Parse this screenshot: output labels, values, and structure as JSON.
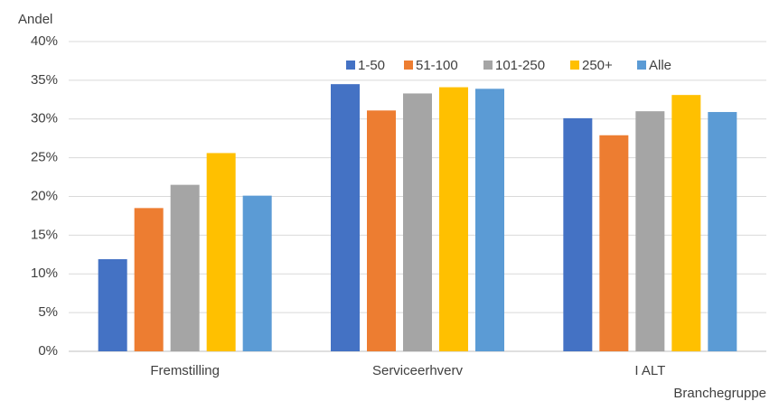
{
  "chart_data": {
    "type": "bar",
    "y_label": "Andel",
    "x_label": "Branchegruppe",
    "categories": [
      "Fremstilling",
      "Serviceerhverv",
      "I ALT"
    ],
    "series": [
      {
        "name": "1-50",
        "color": "#4472c4",
        "values": [
          11.9,
          34.5,
          30.1
        ]
      },
      {
        "name": "51-100",
        "color": "#ed7d31",
        "values": [
          18.5,
          31.1,
          27.9
        ]
      },
      {
        "name": "101-250",
        "color": "#a5a5a5",
        "values": [
          21.5,
          33.3,
          31.0
        ]
      },
      {
        "name": "250+",
        "color": "#ffc000",
        "values": [
          25.6,
          34.1,
          33.1
        ]
      },
      {
        "name": "Alle",
        "color": "#5b9bd5",
        "values": [
          20.1,
          33.9,
          30.9
        ]
      }
    ],
    "ylim": [
      0,
      40
    ],
    "yticks": [
      {
        "value": 0,
        "label": "0%"
      },
      {
        "value": 5,
        "label": "5%"
      },
      {
        "value": 10,
        "label": "10%"
      },
      {
        "value": 15,
        "label": "15%"
      },
      {
        "value": 20,
        "label": "20%"
      },
      {
        "value": 25,
        "label": "25%"
      },
      {
        "value": 30,
        "label": "30%"
      },
      {
        "value": 35,
        "label": "35%"
      },
      {
        "value": 40,
        "label": "40%"
      }
    ],
    "grid": true,
    "legend": "top-right"
  }
}
